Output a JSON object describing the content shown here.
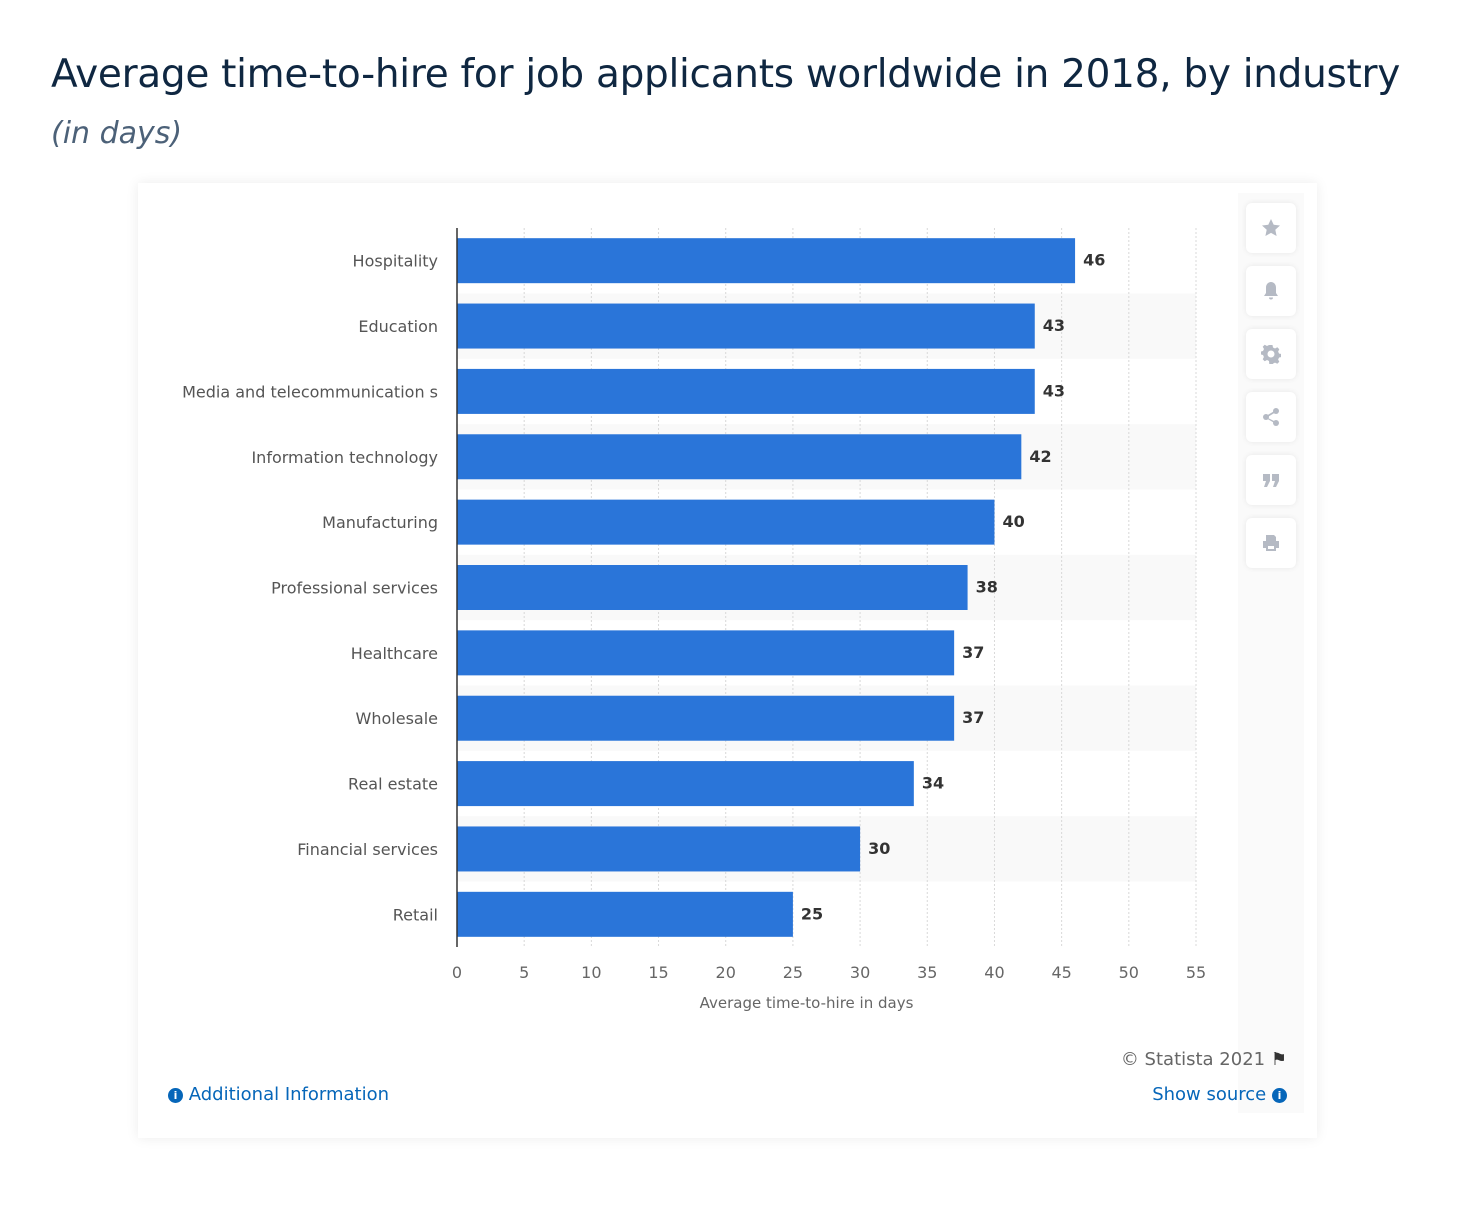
{
  "header": {
    "title": "Average time-to-hire for job applicants worldwide in 2018, by industry",
    "subtitle": "(in days)"
  },
  "toolbar": {
    "icons": [
      "star-icon",
      "bell-icon",
      "gear-icon",
      "share-icon",
      "quote-icon",
      "print-icon"
    ]
  },
  "footer": {
    "copyright": "© Statista 2021",
    "additional_info": "Additional Information",
    "show_source": "Show source"
  },
  "chart_data": {
    "type": "bar",
    "orientation": "horizontal",
    "categories": [
      "Hospitality",
      "Education",
      "Media and telecommunication s",
      "Information technology",
      "Manufacturing",
      "Professional services",
      "Healthcare",
      "Wholesale",
      "Real estate",
      "Financial services",
      "Retail"
    ],
    "values": [
      46,
      43,
      43,
      42,
      40,
      38,
      37,
      37,
      34,
      30,
      25
    ],
    "xlabel": "Average time-to-hire in days",
    "ylabel": "",
    "xlim": [
      0,
      55
    ],
    "xticks": [
      0,
      5,
      10,
      15,
      20,
      25,
      30,
      35,
      40,
      45,
      50,
      55
    ],
    "grid": true,
    "bar_color": "#2a75d9",
    "data_labels": true
  }
}
